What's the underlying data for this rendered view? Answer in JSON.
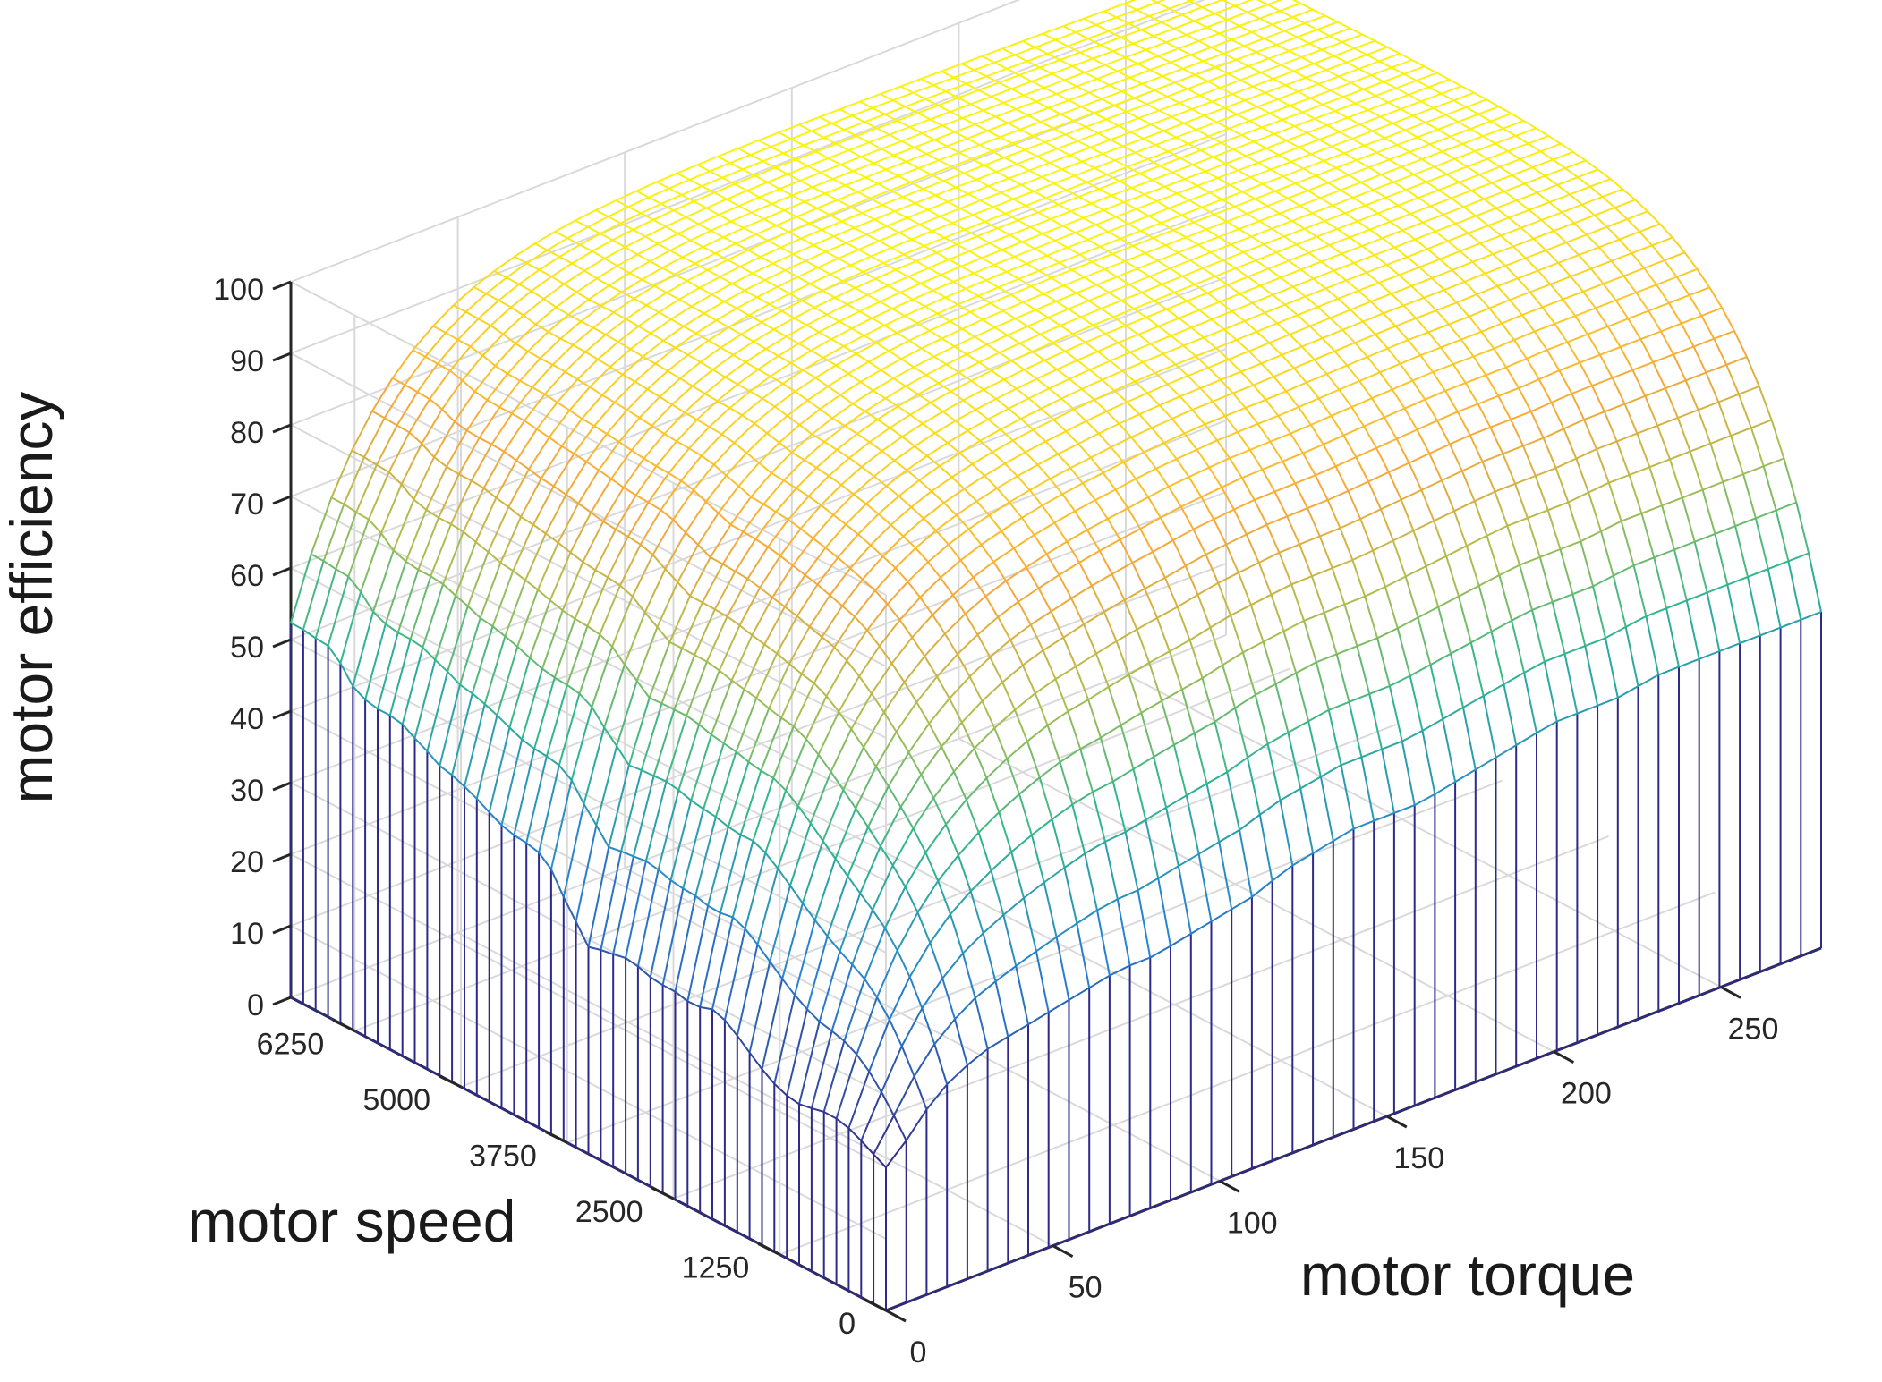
{
  "chart_data": {
    "type": "surface",
    "xlabel": "motor torque",
    "ylabel": "motor speed",
    "zlabel": "motor efficiency",
    "xlim": [
      0,
      280
    ],
    "ylim": [
      0,
      7000
    ],
    "zlim": [
      0,
      100
    ],
    "xticks": [
      0,
      50,
      100,
      150,
      200,
      250
    ],
    "yticks": [
      0,
      1250,
      2500,
      3750,
      5000,
      6250
    ],
    "zticks": [
      0,
      10,
      20,
      30,
      40,
      50,
      60,
      70,
      80,
      90,
      100
    ],
    "xtick_labels": [
      "0",
      "50",
      "100",
      "150",
      "200",
      "250"
    ],
    "ytick_labels": [
      "0",
      "1250",
      "2500",
      "3750",
      "5000",
      "6250"
    ],
    "ztick_labels": [
      "0",
      "10",
      "20",
      "30",
      "40",
      "50",
      "60",
      "70",
      "80",
      "90",
      "100"
    ],
    "grid": true,
    "colormap": "parula",
    "colors": {
      "low": "#352a87",
      "side_walls": "#2e2a8a",
      "mid": "#35b779",
      "high_orange": "#f9a83a",
      "top": "#f9fb0e",
      "grid": "#d9d9d9",
      "axis": "#262626"
    },
    "surface": {
      "torque_grid": [
        0,
        5,
        10,
        15,
        20,
        25,
        30,
        40,
        50,
        60,
        70,
        80,
        90,
        100,
        110,
        120,
        130,
        140,
        150,
        160,
        170,
        180,
        190,
        200,
        210,
        220,
        230,
        240,
        250,
        260,
        270,
        280
      ],
      "speed_grid": [
        0,
        250,
        500,
        750,
        1000,
        1250,
        1500,
        1750,
        2000,
        2250,
        2500,
        2750,
        3000,
        3250,
        3500,
        3750,
        4000,
        4250,
        4500,
        4750,
        5000,
        5250,
        5500,
        5750,
        6000,
        6250,
        6500,
        6750,
        7000
      ],
      "edge_efficiency_at_zero_torque": [
        20,
        22,
        24,
        25,
        25,
        26,
        27,
        28,
        29,
        28,
        30,
        31,
        32,
        30,
        28,
        32,
        38,
        40,
        41,
        42,
        42,
        42,
        44,
        47,
        48,
        49,
        52,
        51,
        51
      ],
      "edge_efficiency_at_zero_speed": [
        20,
        22,
        25,
        27,
        29,
        30,
        31,
        32,
        33,
        34,
        35,
        35,
        36,
        37,
        38,
        40,
        41,
        42,
        42,
        42,
        43,
        44,
        45,
        46,
        46,
        46,
        47,
        47,
        47,
        47,
        47,
        47
      ],
      "peak_efficiency": 96
    }
  }
}
